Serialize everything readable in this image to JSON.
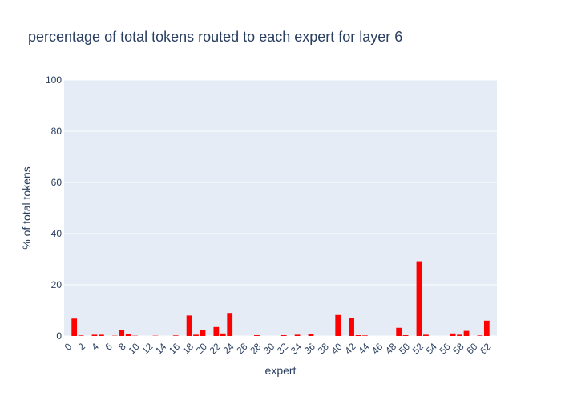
{
  "chart_data": {
    "type": "bar",
    "title": "percentage of total tokens routed to each expert for layer 6",
    "xlabel": "expert",
    "ylabel": "% of total tokens",
    "ylim": [
      0,
      100
    ],
    "y_ticks": [
      0,
      20,
      40,
      60,
      80,
      100
    ],
    "x_ticks": [
      0,
      2,
      4,
      6,
      8,
      10,
      12,
      14,
      16,
      18,
      20,
      22,
      24,
      26,
      28,
      30,
      32,
      34,
      36,
      38,
      40,
      42,
      44,
      46,
      48,
      50,
      52,
      54,
      56,
      58,
      60,
      62
    ],
    "categories": [
      0,
      1,
      2,
      3,
      4,
      5,
      6,
      7,
      8,
      9,
      10,
      11,
      12,
      13,
      14,
      15,
      16,
      17,
      18,
      19,
      20,
      21,
      22,
      23,
      24,
      25,
      26,
      27,
      28,
      29,
      30,
      31,
      32,
      33,
      34,
      35,
      36,
      37,
      38,
      39,
      40,
      41,
      42,
      43,
      44,
      45,
      46,
      47,
      48,
      49,
      50,
      51,
      52,
      53,
      54,
      55,
      56,
      57,
      58,
      59,
      60,
      61,
      62,
      63
    ],
    "values": [
      0,
      6.8,
      0.2,
      0,
      0.5,
      0.5,
      0,
      0.1,
      2.2,
      0.8,
      0.1,
      0,
      0,
      0.1,
      0,
      0,
      0.2,
      0,
      8.0,
      0.5,
      2.5,
      0,
      3.5,
      1.0,
      9.0,
      0,
      0,
      0,
      0.3,
      0,
      0,
      0,
      0.3,
      0,
      0.5,
      0,
      0.8,
      0,
      0,
      0,
      8.2,
      0,
      7.0,
      0.3,
      0.2,
      0,
      0,
      0,
      0,
      3.2,
      0.3,
      0,
      29.2,
      0.5,
      0,
      0,
      0,
      1.0,
      0.5,
      2.0,
      0,
      0.2,
      6.0,
      0
    ],
    "bar_color": "#ff0000",
    "plot_bg": "#e5ecf6",
    "grid": true,
    "legend": false
  }
}
